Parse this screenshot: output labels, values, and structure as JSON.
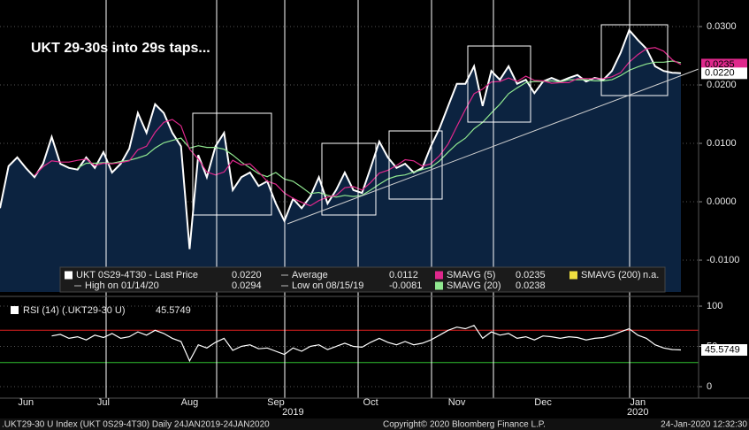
{
  "chart_data": [
    {
      "type": "area",
      "title": "UKT 29-30s into 29s taps...",
      "categories": [
        null,
        null,
        null,
        "Jun",
        null,
        null,
        null,
        null,
        null,
        null,
        null,
        null,
        "Jul",
        null,
        null,
        null,
        null,
        null,
        null,
        null,
        null,
        null,
        "Aug",
        null,
        null,
        null,
        null,
        null,
        null,
        null,
        null,
        null,
        "Sep",
        null,
        null,
        null,
        null,
        null,
        null,
        null,
        null,
        null,
        null,
        "Oct",
        null,
        null,
        null,
        null,
        null,
        null,
        null,
        null,
        null,
        "Nov",
        null,
        null,
        null,
        null,
        null,
        null,
        null,
        null,
        null,
        "Dec",
        null,
        null,
        null,
        null,
        null,
        null,
        null,
        null,
        null,
        null,
        "Jan",
        null,
        null,
        null,
        null,
        null
      ],
      "x_group_labels": [
        null,
        null,
        null,
        null,
        null,
        null,
        null,
        null,
        null,
        null,
        null,
        null,
        null,
        null,
        null,
        null,
        null,
        null,
        null,
        null,
        null,
        null,
        null,
        null,
        null,
        null,
        null,
        null,
        null,
        null,
        null,
        null,
        null,
        null,
        "2019",
        null,
        null,
        null,
        null,
        null,
        null,
        null,
        null,
        null,
        null,
        null,
        null,
        null,
        null,
        null,
        null,
        null,
        null,
        null,
        null,
        null,
        null,
        null,
        null,
        null,
        null,
        null,
        null,
        null,
        null,
        null,
        null,
        null,
        null,
        null,
        null,
        null,
        null,
        null,
        "2020",
        null,
        null,
        null,
        null,
        null
      ],
      "series": [
        {
          "name": "UKT 0S29-4T30 - Last Price",
          "color": "#ffffff",
          "fill": "#0c2340",
          "values": [
            -0.0011,
            0.0061,
            0.0076,
            0.0058,
            0.0042,
            0.0065,
            0.0111,
            0.0065,
            0.0058,
            0.0055,
            0.0076,
            0.0058,
            0.0085,
            0.005,
            0.0065,
            0.0091,
            0.0152,
            0.0118,
            0.0167,
            0.0152,
            0.0118,
            0.0095,
            -0.0081,
            0.008,
            0.0042,
            0.0095,
            0.0118,
            0.002,
            0.0042,
            0.005,
            0.0027,
            0.0035,
            -0.0003,
            -0.0033,
            0.0005,
            -0.0011,
            0.0009,
            0.0042,
            -0.0003,
            0.002,
            0.005,
            0.002,
            0.0015,
            0.0058,
            0.0103,
            0.0076,
            0.0058,
            0.0065,
            0.005,
            0.0058,
            0.0095,
            0.0126,
            0.0164,
            0.0202,
            0.0202,
            0.0232,
            0.0164,
            0.0224,
            0.0209,
            0.0232,
            0.0202,
            0.0209,
            0.0186,
            0.0206,
            0.0212,
            0.0206,
            0.0212,
            0.0217,
            0.0206,
            0.0212,
            0.0209,
            0.0224,
            0.0255,
            0.0294,
            0.0277,
            0.0262,
            0.0232,
            0.0224,
            0.0221,
            0.022
          ]
        },
        {
          "name": "SMAVG (20)",
          "color": "#90e890",
          "values": [
            null,
            null,
            null,
            null,
            null,
            null,
            null,
            null,
            null,
            0.0058,
            0.0066,
            0.0066,
            0.0067,
            0.0066,
            0.0069,
            0.0071,
            0.0075,
            0.008,
            0.0092,
            0.0101,
            0.0105,
            0.0109,
            0.0092,
            0.0096,
            0.0093,
            0.0093,
            0.009,
            0.008,
            0.0068,
            0.0058,
            0.0048,
            0.0043,
            0.005,
            0.0039,
            0.0035,
            0.0025,
            0.0014,
            0.0016,
            0.0011,
            0.0008,
            0.0011,
            0.0009,
            0.0011,
            0.002,
            0.003,
            0.0039,
            0.0044,
            0.0046,
            0.0051,
            0.0055,
            0.0059,
            0.007,
            0.0085,
            0.0099,
            0.0109,
            0.0125,
            0.0136,
            0.0152,
            0.0167,
            0.0185,
            0.0195,
            0.0204,
            0.0206,
            0.0206,
            0.0207,
            0.0205,
            0.0209,
            0.0209,
            0.0209,
            0.0207,
            0.0207,
            0.0209,
            0.0216,
            0.0225,
            0.0231,
            0.0236,
            0.0239,
            0.0239,
            0.0241,
            0.0238
          ]
        },
        {
          "name": "SMAVG (5)",
          "color": "#e0288c",
          "values": [
            null,
            null,
            null,
            null,
            0.0045,
            0.006,
            0.007,
            0.0068,
            0.0068,
            0.0071,
            0.0073,
            0.0062,
            0.0066,
            0.0065,
            0.0067,
            0.007,
            0.0089,
            0.0095,
            0.0119,
            0.0136,
            0.0141,
            0.013,
            0.009,
            0.0073,
            0.0051,
            0.0046,
            0.0051,
            0.0071,
            0.0063,
            0.0065,
            0.0051,
            0.0035,
            0.003,
            0.0015,
            0.0006,
            -0.0001,
            -0.0007,
            0.0002,
            0.0008,
            0.0011,
            0.0024,
            0.0026,
            0.002,
            0.0033,
            0.0049,
            0.0054,
            0.0062,
            0.0072,
            0.007,
            0.0061,
            0.0065,
            0.0079,
            0.0099,
            0.0129,
            0.0158,
            0.0185,
            0.0193,
            0.0205,
            0.0206,
            0.0212,
            0.0206,
            0.0215,
            0.0208,
            0.0207,
            0.0203,
            0.0204,
            0.0204,
            0.0211,
            0.0211,
            0.0211,
            0.0211,
            0.0214,
            0.0221,
            0.0239,
            0.0252,
            0.0262,
            0.0264,
            0.0258,
            0.0243,
            0.0235
          ]
        }
      ],
      "ylim": [
        -0.01545,
        0.03455
      ],
      "yticks": [
        {
          "value": -0.01,
          "label": "-0.0100"
        },
        {
          "value": 0,
          "label": "0.0000"
        },
        {
          "value": 0.01,
          "label": "0.0100"
        },
        {
          "value": 0.02,
          "label": "0.0200"
        },
        {
          "value": 0.03,
          "label": "0.0300"
        }
      ],
      "grid": true,
      "legend": [
        {
          "label": "UKT 0S29-4T30 - Last Price",
          "value": "0.0220",
          "color": "#ffffff"
        },
        {
          "label": "Average",
          "value": "0.0112"
        },
        {
          "label": "SMAVG (5)",
          "value": "0.0235",
          "color": "#e0288c"
        },
        {
          "label": "SMAVG (200)",
          "value": "n.a.",
          "color": "#f0e040"
        },
        {
          "label": "High on 01/14/20",
          "value": "0.0294"
        },
        {
          "label": "Low on 08/15/19",
          "value": "-0.0081"
        },
        {
          "label": "SMAVG (20)",
          "value": "0.0238",
          "color": "#90e890"
        }
      ]
    },
    {
      "type": "line",
      "legend_label": "RSI (14) (.UKT29-30 U)",
      "legend_value": "45.5749",
      "series": [
        {
          "name": "RSI (14)",
          "color": "#ffffff",
          "values": [
            null,
            null,
            null,
            null,
            null,
            null,
            63,
            65,
            60,
            62,
            58,
            64,
            61,
            66,
            60,
            62,
            68,
            64,
            70,
            66,
            60,
            56,
            32,
            52,
            48,
            55,
            60,
            45,
            50,
            52,
            47,
            48,
            44,
            40,
            48,
            44,
            50,
            52,
            46,
            50,
            54,
            50,
            49,
            55,
            60,
            55,
            52,
            56,
            52,
            54,
            58,
            64,
            70,
            74,
            72,
            76,
            60,
            68,
            64,
            66,
            60,
            62,
            58,
            63,
            62,
            60,
            62,
            61,
            58,
            60,
            61,
            64,
            68,
            72,
            64,
            60,
            52,
            48,
            46,
            45.5749
          ]
        }
      ],
      "levels": [
        {
          "value": 70,
          "color": "#e02020"
        },
        {
          "value": 30,
          "color": "#30c030"
        }
      ],
      "ylim": [
        -14.3,
        108.8
      ],
      "yticks": [
        0,
        50,
        100
      ]
    }
  ],
  "footer": {
    "left": ".UKT29-30 U Index (UKT 0S29-4T30)   Daily 24JAN2019-24JAN2020",
    "center": "Copyright© 2020 Bloomberg Finance L.P.",
    "right": "24-Jan-2020 12:32:30"
  }
}
